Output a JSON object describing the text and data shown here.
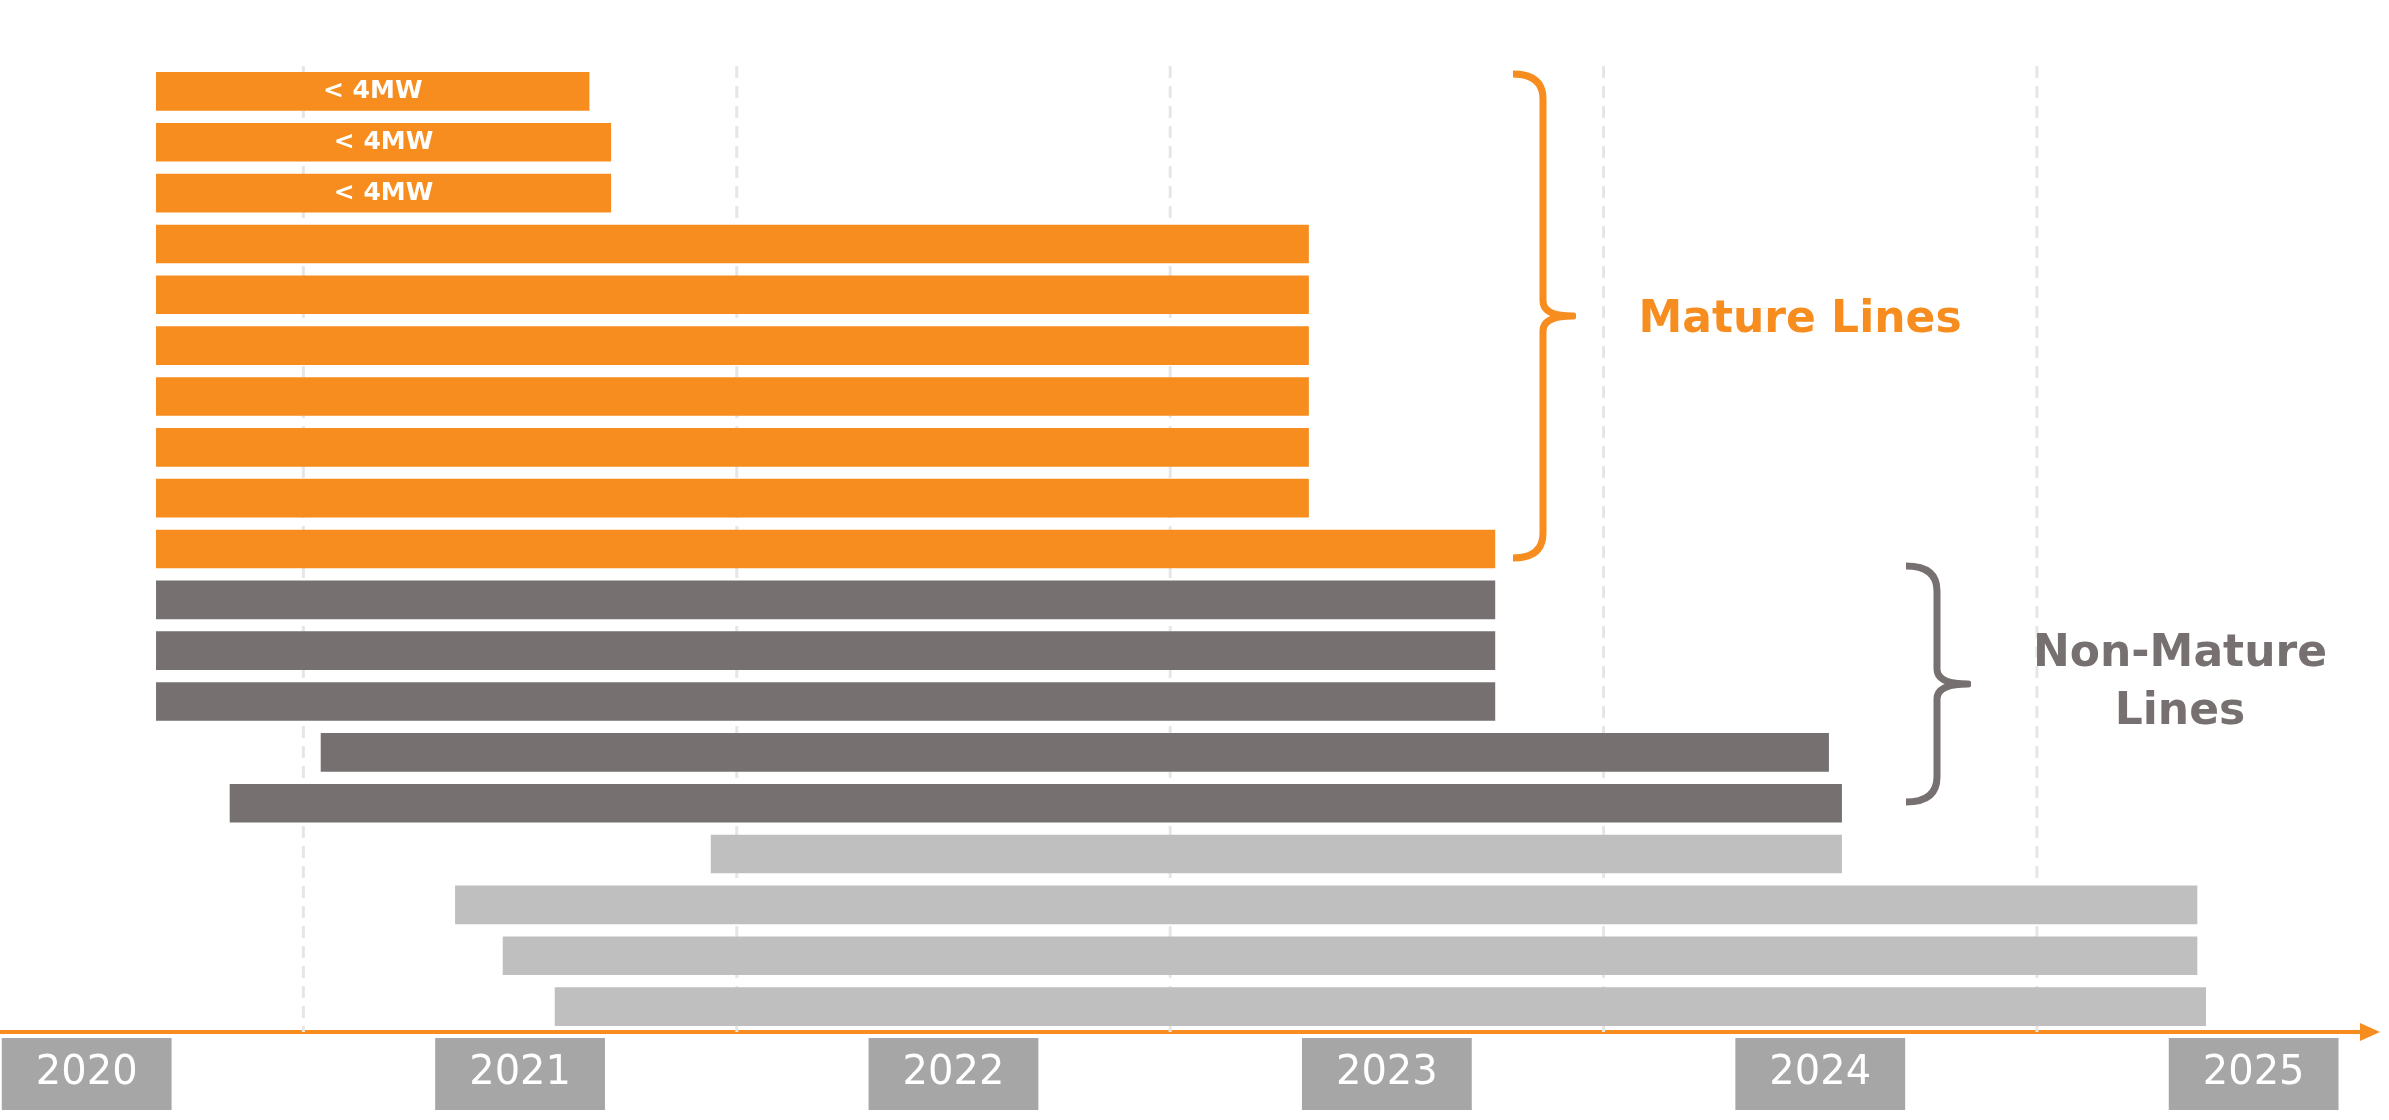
{
  "chart_data": {
    "type": "bar",
    "orientation": "horizontal",
    "categories": [
      null,
      null,
      null,
      null,
      null,
      null,
      null,
      null,
      null,
      null,
      null,
      null,
      null,
      null,
      null,
      null,
      null,
      null,
      null
    ],
    "base": [
      2020.16,
      2020.16,
      2020.16,
      2020.16,
      2020.16,
      2020.16,
      2020.16,
      2020.16,
      2020.16,
      2020.16,
      2020.16,
      2020.16,
      2020.16,
      2020.54,
      2020.33,
      2021.44,
      2020.85,
      2020.96,
      2021.08
    ],
    "values": [
      1.0,
      1.05,
      1.05,
      2.66,
      2.66,
      2.66,
      2.66,
      2.66,
      2.66,
      3.09,
      3.09,
      3.09,
      3.09,
      3.48,
      3.72,
      2.61,
      4.02,
      3.91,
      3.81
    ],
    "colors": [
      "#f68d1e",
      "#f68d1e",
      "#f68d1e",
      "#f68d1e",
      "#f68d1e",
      "#f68d1e",
      "#f68d1e",
      "#f68d1e",
      "#f68d1e",
      "#f68d1e",
      "#767170",
      "#767170",
      "#767170",
      "#767170",
      "#767170",
      "#bfbfbf",
      "#bfbfbf",
      "#bfbfbf",
      "#bfbfbf"
    ],
    "value_labels": [
      "< 4MW",
      "< 4MW",
      "< 4MW",
      null,
      null,
      null,
      null,
      null,
      null,
      null,
      null,
      null,
      null,
      null,
      null,
      null,
      null,
      null,
      null
    ],
    "xlim": [
      2019.8,
      2025.25
    ],
    "xticks": [
      2020,
      2021,
      2022,
      2023,
      2024,
      2025
    ],
    "ref_lines": [
      {
        "axis": "x",
        "value": 2020.5,
        "color": "#e6e6e6",
        "line_style": "dashed"
      },
      {
        "axis": "x",
        "value": 2021.5,
        "color": "#e6e6e6",
        "line_style": "dashed"
      },
      {
        "axis": "x",
        "value": 2022.5,
        "color": "#e6e6e6",
        "line_style": "dashed"
      },
      {
        "axis": "x",
        "value": 2023.5,
        "color": "#e6e6e6",
        "line_style": "dashed"
      },
      {
        "axis": "x",
        "value": 2024.5,
        "color": "#e6e6e6",
        "line_style": "dashed"
      }
    ],
    "annotations": [
      "Mature Lines",
      "Non-Mature Lines"
    ],
    "tick_labels": "x",
    "grid": false,
    "legend": false
  }
}
